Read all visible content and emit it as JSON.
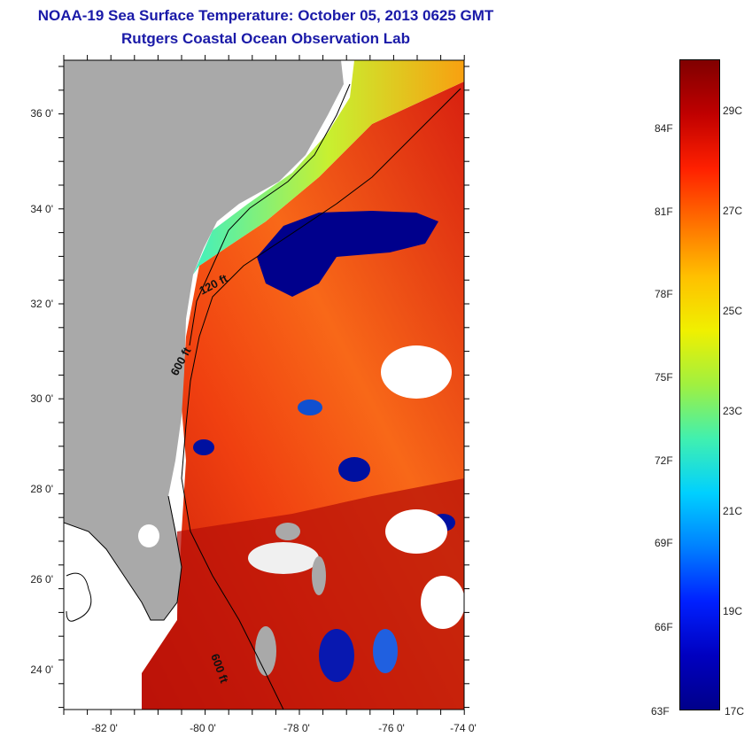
{
  "header": {
    "title": "NOAA-19 Sea Surface Temperature:  October 05, 2013 0625 GMT",
    "subtitle": "Rutgers Coastal Ocean Observation Lab"
  },
  "map": {
    "lon_ticks": [
      "-82 0'",
      "-80 0'",
      "-78 0'",
      "-76 0'",
      "-74 0'"
    ],
    "lat_ticks": [
      "36 0'",
      "34 0'",
      "32 0'",
      "30 0'",
      "28 0'",
      "26 0'",
      "24 0'"
    ],
    "isobath_labels": [
      "120 ft",
      "600 ft",
      "600 ft"
    ],
    "colors": {
      "land": "#a9a9a9",
      "cloud": "#ffffff",
      "cold": "#00009a",
      "warm": "#e03010"
    }
  },
  "colorbar": {
    "fahrenheit": [
      "84F",
      "81F",
      "78F",
      "75F",
      "72F",
      "69F",
      "66F",
      "63F"
    ],
    "celsius": [
      "29C",
      "27C",
      "25C",
      "23C",
      "21C",
      "19C",
      "17C"
    ]
  }
}
